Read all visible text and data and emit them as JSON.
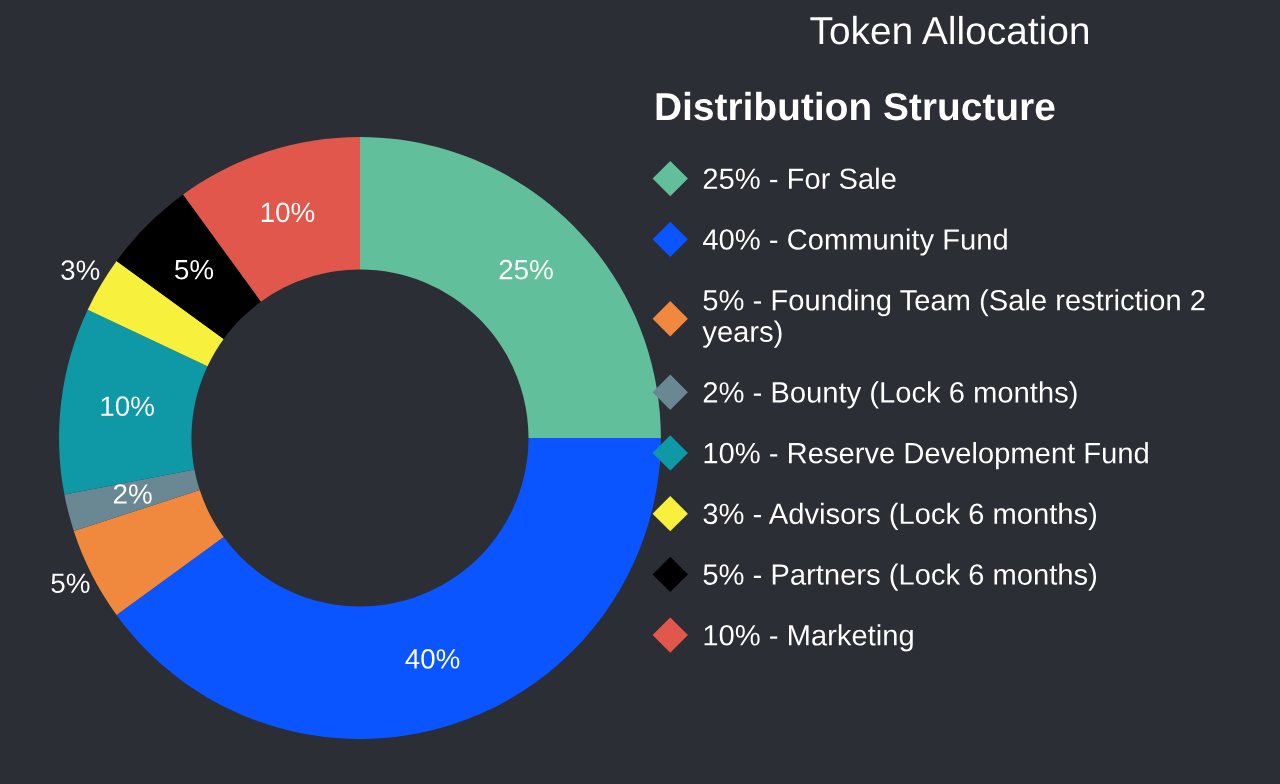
{
  "chart_data": {
    "type": "donut",
    "title": "Token Allocation",
    "subtitle": "Distribution Structure",
    "categories": [
      "25% - For Sale",
      "40% - Community Fund",
      "5% - Founding Team (Sale restriction 2 years)",
      "2% - Bounty (Lock 6 months)",
      "10% - Reserve Development Fund",
      "3% - Advisors (Lock 6 months)",
      "5% - Partners (Lock 6 months)",
      "10% - Marketing"
    ],
    "values": [
      25,
      40,
      5,
      2,
      10,
      3,
      5,
      10
    ],
    "value_labels": [
      "25%",
      "40%",
      "5%",
      "2%",
      "10%",
      "3%",
      "5%",
      "10%"
    ],
    "colors": [
      "#62bf9b",
      "#0a55ff",
      "#f0883e",
      "#6a8794",
      "#0f98a5",
      "#f7f03c",
      "#000000",
      "#e2574c"
    ],
    "legend": "right"
  }
}
